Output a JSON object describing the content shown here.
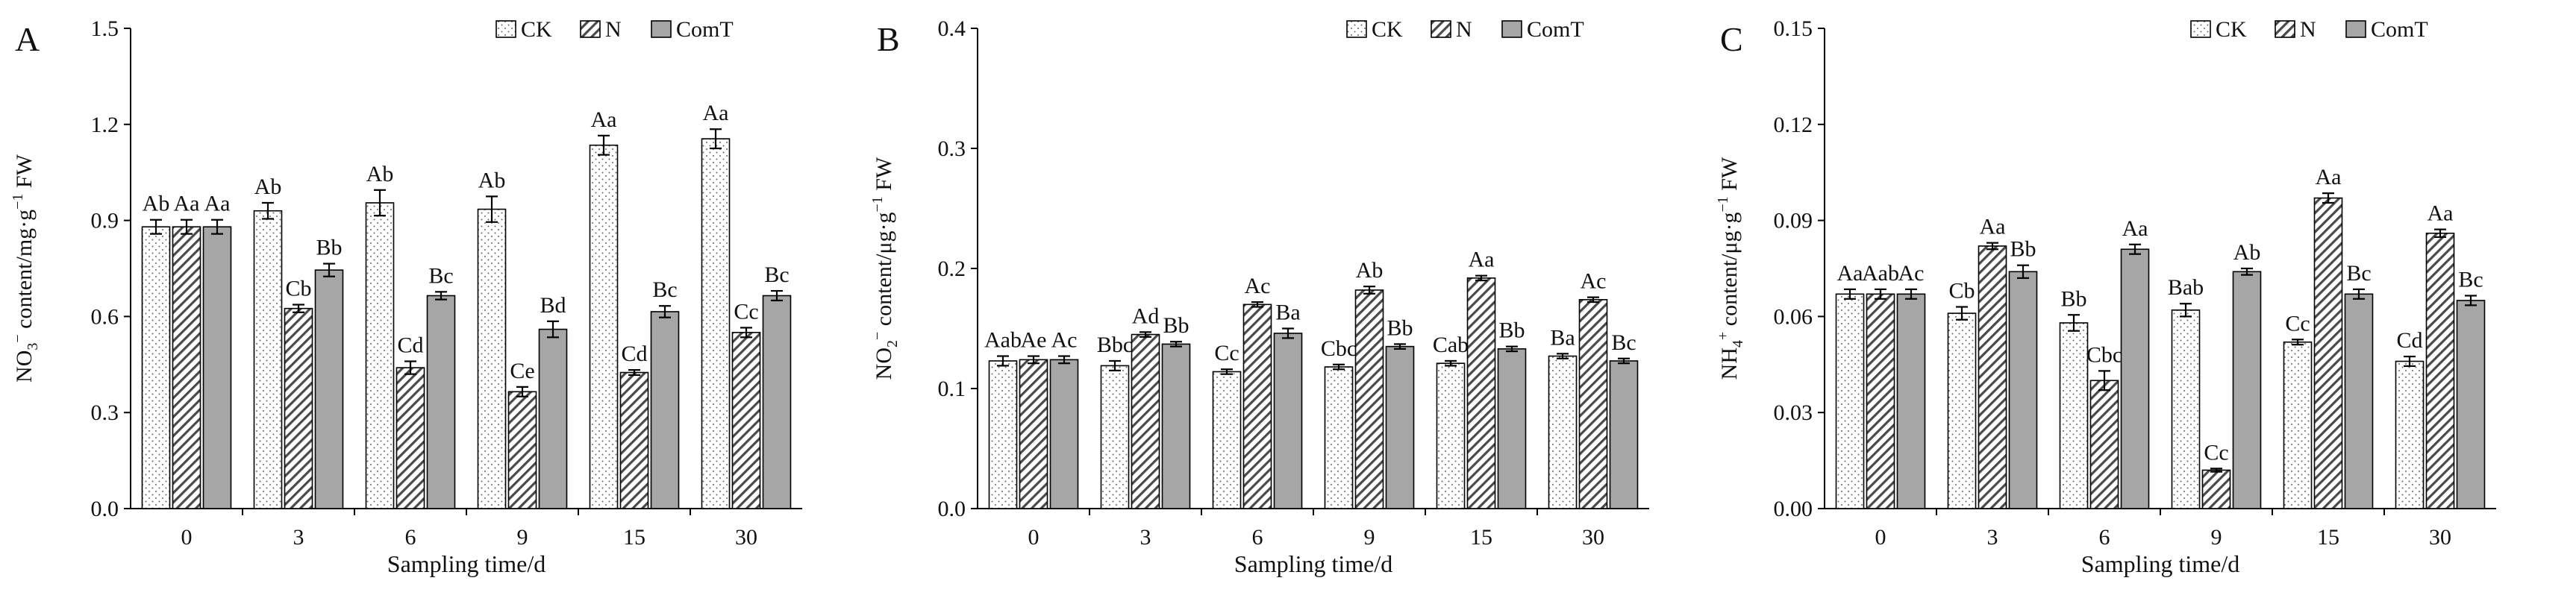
{
  "legend_labels": [
    "CK",
    "N",
    "ComT"
  ],
  "chart_data": [
    {
      "type": "bar",
      "panel_label": "A",
      "ylabel_parts": [
        "NO",
        "3",
        "−",
        " content/mg·g",
        "−1",
        " FW"
      ],
      "xlabel": "Sampling time/d",
      "categories": [
        "0",
        "3",
        "6",
        "9",
        "15",
        "30"
      ],
      "ylim": [
        0,
        1.5
      ],
      "yticks": [
        "0.0",
        "0.3",
        "0.6",
        "0.9",
        "1.2",
        "1.5"
      ],
      "series": [
        {
          "name": "CK",
          "values": [
            0.88,
            0.93,
            0.955,
            0.935,
            1.135,
            1.155
          ],
          "errors": [
            0.022,
            0.025,
            0.04,
            0.04,
            0.03,
            0.03
          ],
          "labels": [
            "Ab",
            "Ab",
            "Ab",
            "Ab",
            "Aa",
            "Aa"
          ]
        },
        {
          "name": "N",
          "values": [
            0.88,
            0.625,
            0.44,
            0.365,
            0.425,
            0.55
          ],
          "errors": [
            0.022,
            0.012,
            0.02,
            0.015,
            0.008,
            0.015
          ],
          "labels": [
            "Aa",
            "Cb",
            "Cd",
            "Ce",
            "Cd",
            "Cc"
          ]
        },
        {
          "name": "ComT",
          "values": [
            0.88,
            0.745,
            0.665,
            0.56,
            0.615,
            0.665
          ],
          "errors": [
            0.022,
            0.02,
            0.012,
            0.025,
            0.018,
            0.015
          ],
          "labels": [
            "Aa",
            "Bb",
            "Bc",
            "Bd",
            "Bc",
            "Bc"
          ]
        }
      ]
    },
    {
      "type": "bar",
      "panel_label": "B",
      "ylabel_parts": [
        "NO",
        "2",
        "−",
        " content/μg·g",
        "−1",
        " FW"
      ],
      "xlabel": "Sampling time/d",
      "categories": [
        "0",
        "3",
        "6",
        "9",
        "15",
        "30"
      ],
      "ylim": [
        0,
        0.4
      ],
      "yticks": [
        "0.0",
        "0.1",
        "0.2",
        "0.3",
        "0.4"
      ],
      "series": [
        {
          "name": "CK",
          "values": [
            0.123,
            0.119,
            0.114,
            0.118,
            0.121,
            0.127
          ],
          "errors": [
            0.004,
            0.004,
            0.002,
            0.002,
            0.002,
            0.002
          ],
          "labels": [
            "Aab",
            "Bbc",
            "Cc",
            "Cbc",
            "Cab",
            "Ba"
          ]
        },
        {
          "name": "N",
          "values": [
            0.124,
            0.145,
            0.17,
            0.182,
            0.192,
            0.174
          ],
          "errors": [
            0.003,
            0.002,
            0.002,
            0.003,
            0.002,
            0.002
          ],
          "labels": [
            "Ae",
            "Ad",
            "Ac",
            "Ab",
            "Aa",
            "Ac"
          ]
        },
        {
          "name": "ComT",
          "values": [
            0.124,
            0.137,
            0.146,
            0.135,
            0.133,
            0.123
          ],
          "errors": [
            0.003,
            0.002,
            0.004,
            0.002,
            0.002,
            0.002
          ],
          "labels": [
            "Ac",
            "Bb",
            "Ba",
            "Bb",
            "Bb",
            "Bc"
          ]
        }
      ]
    },
    {
      "type": "bar",
      "panel_label": "C",
      "ylabel_parts": [
        "NH",
        "4",
        "+",
        " content/μg·g",
        "−1",
        " FW"
      ],
      "xlabel": "Sampling time/d",
      "categories": [
        "0",
        "3",
        "6",
        "9",
        "15",
        "30"
      ],
      "ylim": [
        0,
        0.15
      ],
      "yticks": [
        "0.00",
        "0.03",
        "0.06",
        "0.09",
        "0.12",
        "0.15"
      ],
      "series": [
        {
          "name": "CK",
          "values": [
            0.067,
            0.061,
            0.058,
            0.062,
            0.052,
            0.046
          ],
          "errors": [
            0.0015,
            0.002,
            0.0025,
            0.002,
            0.0008,
            0.0015
          ],
          "labels": [
            "Aa",
            "Cb",
            "Bb",
            "Bab",
            "Cc",
            "Cd"
          ]
        },
        {
          "name": "N",
          "values": [
            0.067,
            0.082,
            0.04,
            0.012,
            0.097,
            0.086
          ],
          "errors": [
            0.0015,
            0.001,
            0.003,
            0.0005,
            0.0015,
            0.0012
          ],
          "labels": [
            "Aab",
            "Aa",
            "Cbc",
            "Cc",
            "Aa",
            "Aa"
          ]
        },
        {
          "name": "ComT",
          "values": [
            0.067,
            0.074,
            0.081,
            0.074,
            0.067,
            0.065
          ],
          "errors": [
            0.0015,
            0.002,
            0.0015,
            0.001,
            0.0015,
            0.0015
          ],
          "labels": [
            "Ac",
            "Bb",
            "Aa",
            "Ab",
            "Bc",
            "Bc"
          ]
        }
      ]
    }
  ]
}
